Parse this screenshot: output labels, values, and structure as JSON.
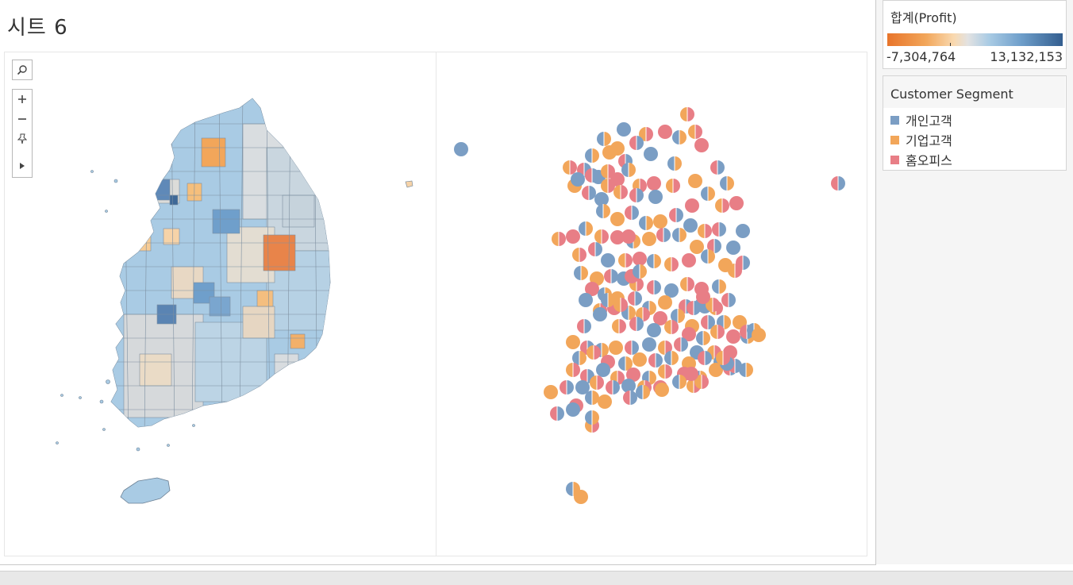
{
  "sheet": {
    "title": "시트 6"
  },
  "toolbar": {
    "search_icon": "magnifier",
    "zoom_in_icon": "+",
    "zoom_out_icon": "−",
    "pin_icon": "pin",
    "expand_icon": "▶"
  },
  "legends": {
    "profit": {
      "title": "합계(Profit)",
      "min_label": "-7,304,764",
      "max_label": "13,132,153",
      "colors": {
        "negative": "#e8742a",
        "neutral": "#e2e2e2",
        "positive": "#335e8f"
      }
    },
    "segment": {
      "title": "Customer Segment",
      "items": [
        {
          "label": "개인고객",
          "color": "#7b9ec4"
        },
        {
          "label": "기업고객",
          "color": "#f2a65a"
        },
        {
          "label": "홈오피스",
          "color": "#e87e86"
        }
      ]
    }
  }
}
